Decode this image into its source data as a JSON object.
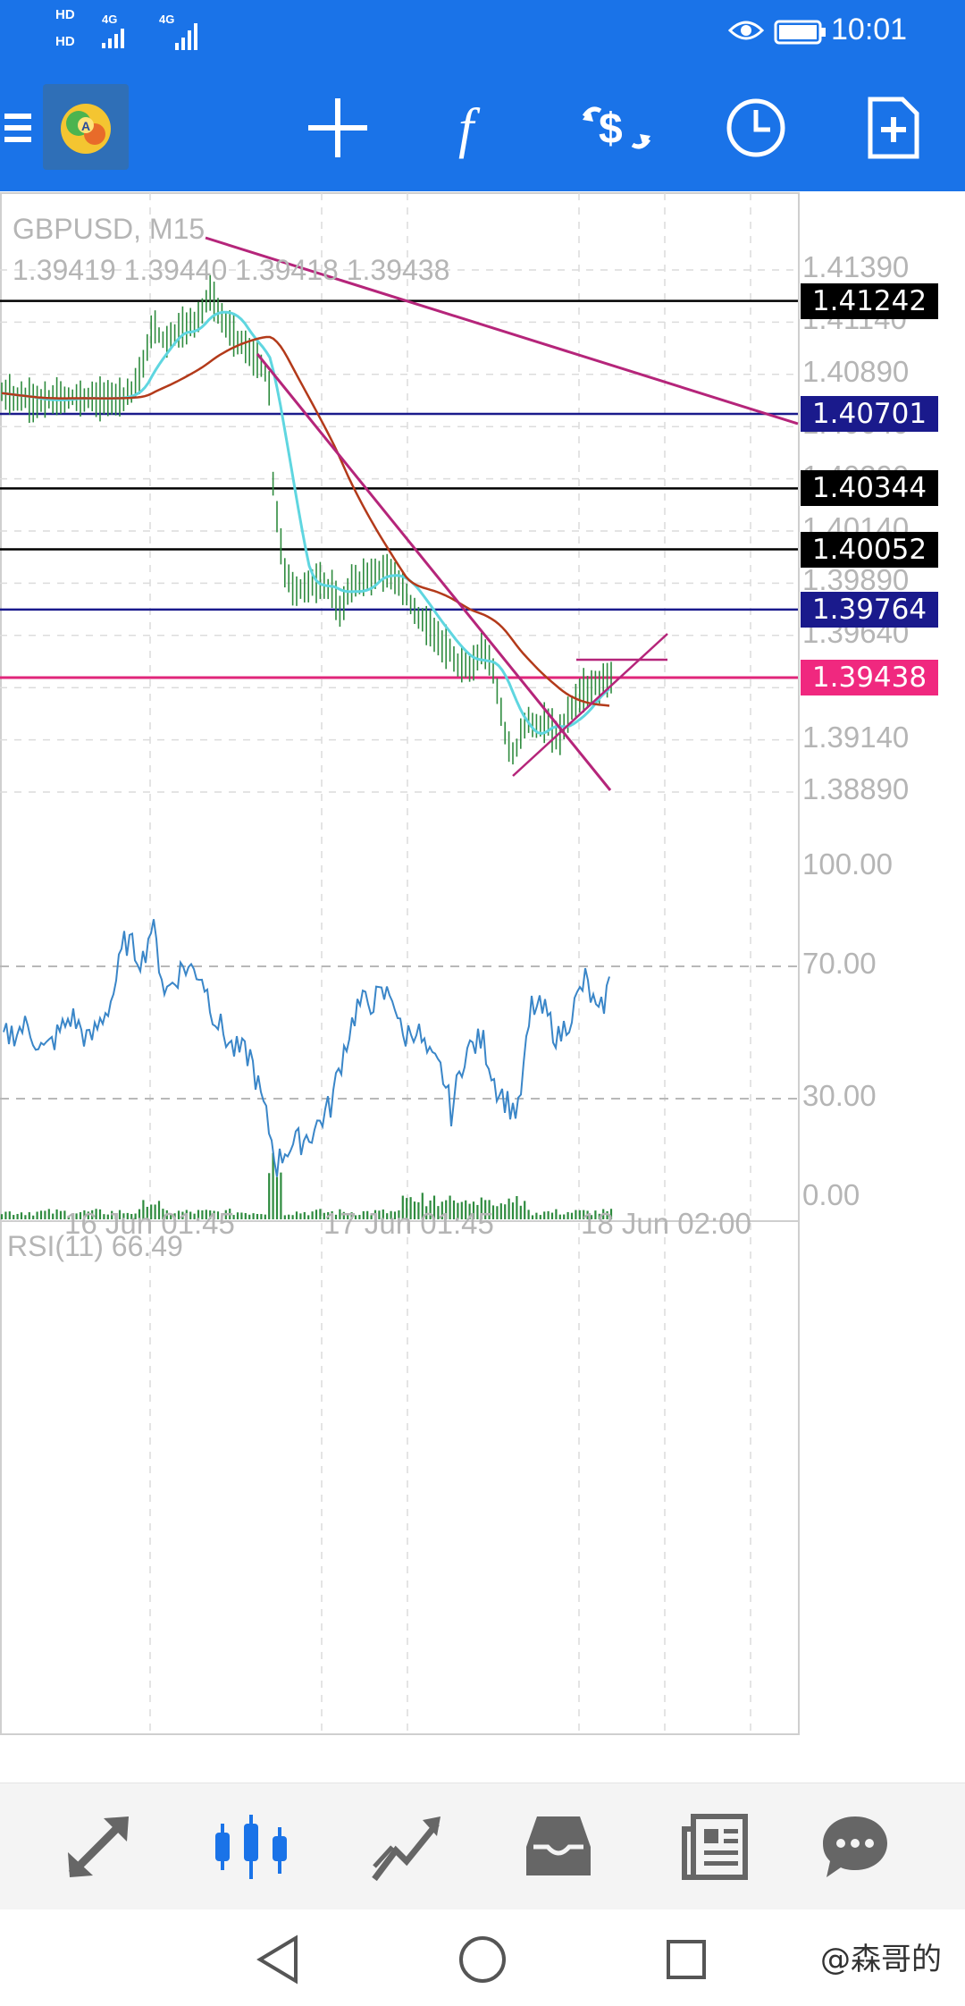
{
  "status": {
    "time": "10:01",
    "sig1_top": "HD",
    "sig1_bottom": "HD",
    "net1": "4G",
    "net2": "4G"
  },
  "toolbar": {
    "icons": [
      "menu-icon",
      "app-logo",
      "crosshair-icon",
      "function-icon",
      "trade-icon",
      "clock-icon",
      "new-document-icon"
    ]
  },
  "chart": {
    "symbol_label": "GBPUSD, M15",
    "ohlc_label": "1.39419 1.39440 1.39418 1.39438",
    "price_axis": [
      "1.41390",
      "1.41140",
      "1.40890",
      "1.40640",
      "1.40390",
      "1.40140",
      "1.39890",
      "1.39640",
      "1.39390",
      "1.39140",
      "1.38890"
    ],
    "levels": [
      {
        "value": "1.41242",
        "color": "#000000",
        "tag_bg": "#000000"
      },
      {
        "value": "1.40701",
        "color": "#1a1a8c",
        "tag_bg": "#1a1a8c"
      },
      {
        "value": "1.40344",
        "color": "#000000",
        "tag_bg": "#000000"
      },
      {
        "value": "1.40052",
        "color": "#000000",
        "tag_bg": "#000000"
      },
      {
        "value": "1.39764",
        "color": "#1a1a8c",
        "tag_bg": "#1a1a8c"
      },
      {
        "value": "1.39438",
        "color": "#e0267a",
        "tag_bg": "#f0287f"
      }
    ],
    "time_axis": [
      "16 Jun 01:45",
      "17 Jun 01:45",
      "18 Jun 02:00"
    ]
  },
  "rsi": {
    "label": "RSI(11) 66.49",
    "axis": [
      "100.00",
      "70.00",
      "30.00",
      "0.00"
    ]
  },
  "bottom_nav": {
    "items": [
      "quotes-icon",
      "chart-icon",
      "trade-icon",
      "history-icon",
      "news-icon",
      "chat-icon"
    ]
  },
  "watermark": "@森哥的",
  "colors": {
    "accent": "#1a73e8",
    "candle": "#2e8b3e",
    "ma_fast": "#5fd6e0",
    "ma_slow": "#b33a1a",
    "trendline": "#b5257a",
    "rsi": "#3a86c8"
  }
}
